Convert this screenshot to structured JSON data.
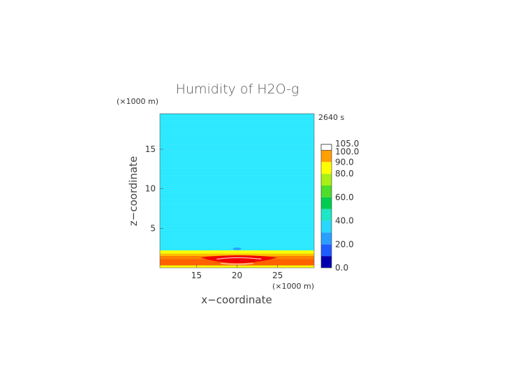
{
  "chart_data": {
    "type": "heatmap",
    "title": "Humidity of H2O-g",
    "time_label": "2640 s",
    "xlabel": "x−coordinate",
    "ylabel": "z−coordinate",
    "x_unit": "(×1000 m)",
    "y_unit": "(×1000 m)",
    "xlim": [
      10.5,
      29.5
    ],
    "ylim": [
      0,
      19.5
    ],
    "x_ticks": [
      "15",
      "20",
      "25"
    ],
    "x_tick_values": [
      15,
      20,
      25
    ],
    "y_ticks": [
      "5",
      "10",
      "15"
    ],
    "y_tick_values": [
      5,
      10,
      15
    ],
    "colorbar": {
      "levels": [
        0,
        10,
        20,
        30,
        40,
        50,
        60,
        70,
        80,
        90,
        100,
        105
      ],
      "labels": [
        "0.0",
        "20.0",
        "40.0",
        "60.0",
        "80.0",
        "90.0",
        "100.0",
        "105.0"
      ],
      "label_values": [
        0,
        20,
        40,
        60,
        80,
        90,
        100,
        105
      ],
      "colors": [
        "#0000b0",
        "#1e5cff",
        "#29a0ff",
        "#2ad7ff",
        "#1ee6c8",
        "#00cc50",
        "#4cde2a",
        "#a8f016",
        "#ffff00",
        "#ffa000",
        "#ff5000",
        "#e60000",
        "#ffffff"
      ]
    },
    "field": {
      "background_value": 45,
      "background_color": "#29e8ff",
      "surface_layer_top_z": 2.2,
      "layers": [
        {
          "z_from": 0,
          "z_to": 0.3,
          "value": 75,
          "color": "#ffff00"
        },
        {
          "z_from": 0.3,
          "z_to": 1.1,
          "value": 95,
          "color": "#ff6000"
        },
        {
          "z_from": 1.1,
          "z_to": 1.5,
          "value": 92,
          "color": "#ff8000"
        },
        {
          "z_from": 1.5,
          "z_to": 1.8,
          "value": 80,
          "color": "#ffc000"
        },
        {
          "z_from": 1.8,
          "z_to": 2.2,
          "value": 70,
          "color": "#ffff00"
        }
      ],
      "blob_center_x": 20,
      "blob_value": 100,
      "blob_color": "#f00000"
    }
  }
}
